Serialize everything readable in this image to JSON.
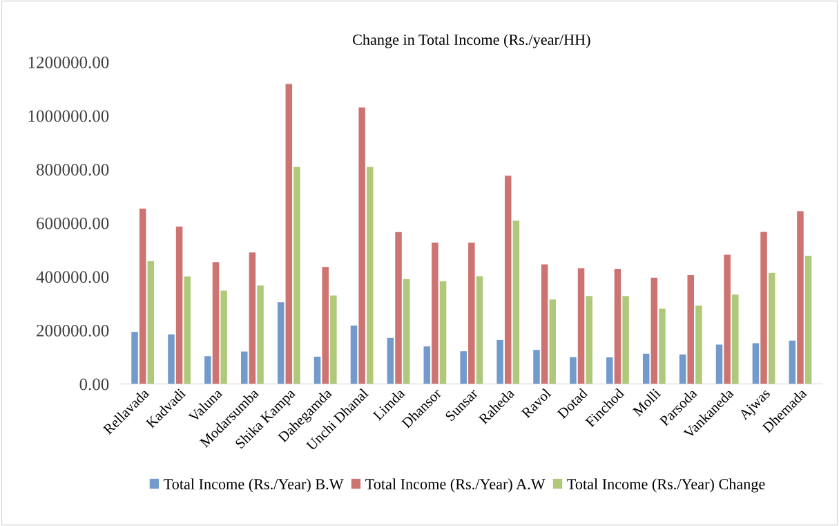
{
  "chart_data": {
    "type": "bar",
    "title": "Change in Total Income (Rs./year/HH)",
    "categories": [
      "Rellavada",
      "Kadvadi",
      "Valuna",
      "Modarsumba",
      "Shika Kampa",
      "Dahegamda",
      "Unchi Dhanal",
      "Limda",
      "Dhansor",
      "Sunsar",
      "Raheda",
      "Ravol",
      "Dotad",
      "Finchod",
      "Molli",
      "Parsoda",
      "Vankaneda",
      "Ajwas",
      "Dhemada"
    ],
    "series": [
      {
        "name": "Total Income (Rs./Year) B.W",
        "color": "#729aca",
        "values": [
          194000,
          185000,
          104000,
          121000,
          305000,
          102000,
          218000,
          172000,
          140000,
          122000,
          164000,
          127000,
          100000,
          99000,
          113000,
          110000,
          147000,
          152000,
          162000
        ]
      },
      {
        "name": "Total Income (Rs./Year) A.W",
        "color": "#cd7371",
        "values": [
          654000,
          587000,
          454000,
          490000,
          1118000,
          436000,
          1031000,
          566000,
          527000,
          527000,
          776000,
          446000,
          431000,
          429000,
          396000,
          406000,
          482000,
          567000,
          644000
        ]
      },
      {
        "name": "Total Income (Rs./Year) Change",
        "color": "#afc97a",
        "values": [
          458000,
          401000,
          348000,
          367000,
          809000,
          330000,
          809000,
          391000,
          383000,
          402000,
          609000,
          315000,
          328000,
          328000,
          281000,
          292000,
          333000,
          414000,
          478000
        ]
      }
    ],
    "ylim": [
      0,
      1200000
    ],
    "yticks": [
      {
        "value": 0,
        "label": "0.00"
      },
      {
        "value": 200000,
        "label": "200000.00"
      },
      {
        "value": 400000,
        "label": "400000.00"
      },
      {
        "value": 600000,
        "label": "600000.00"
      },
      {
        "value": 800000,
        "label": "800000.00"
      },
      {
        "value": 1000000,
        "label": "1000000.00"
      },
      {
        "value": 1200000,
        "label": "1200000.00"
      }
    ],
    "grid": false,
    "legend": "bottom"
  }
}
